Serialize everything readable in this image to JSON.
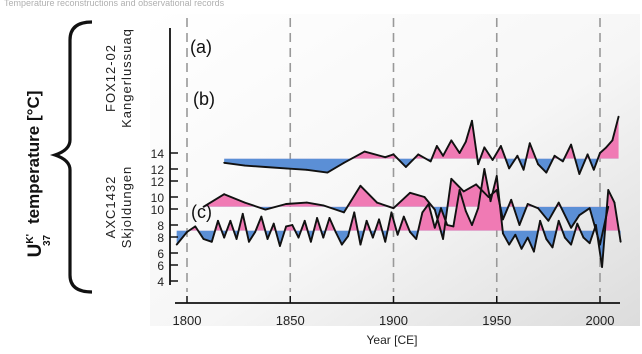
{
  "header_text": "Temperature reconstructions and observational records",
  "chart_data": {
    "type": "line",
    "ylabel_main": "temperature [°C]",
    "ylabel_symbol": "U",
    "ylabel_sup": "K'",
    "ylabel_sub": "37",
    "xlabel": "Year [CE]",
    "xlim": [
      1785,
      2015
    ],
    "xticks": [
      1800,
      1850,
      1900,
      1950,
      2000
    ],
    "dashed_gridlines_x": [
      1800,
      1850,
      1900,
      1950,
      2000
    ],
    "left_ticks": [
      4,
      6,
      8,
      10,
      12
    ],
    "right_ticks": [
      6,
      8,
      10,
      12,
      14
    ],
    "colors": {
      "above": "#f07ab4",
      "below": "#5b8fd6",
      "line": "#111111"
    },
    "series": [
      {
        "panel": "(a)",
        "site": "FOX12-02",
        "site2": "Kangerlussuaq",
        "baseline": 9.3,
        "x": [
          1808,
          1818,
          1828,
          1838,
          1848,
          1858,
          1866,
          1876,
          1884,
          1892,
          1900,
          1908,
          1915,
          1920,
          1924,
          1928,
          1934,
          1940,
          1946,
          1950,
          1953,
          1957,
          1961,
          1965,
          1970,
          1975,
          1980,
          1986,
          1990,
          1995,
          2000,
          2004
        ],
        "y": [
          9.3,
          10.2,
          9.6,
          9.1,
          9.5,
          9.6,
          9.4,
          8.9,
          10.8,
          9.6,
          9.2,
          10.3,
          10.0,
          9.1,
          7.0,
          11.3,
          10.4,
          10.9,
          10.0,
          10.5,
          8.4,
          9.8,
          8.0,
          9.5,
          9.2,
          8.3,
          9.6,
          7.8,
          8.7,
          9.2,
          6.6,
          9.3
        ]
      },
      {
        "panel": "(b)",
        "baseline": 13.6,
        "x": [
          1818,
          1828,
          1838,
          1848,
          1858,
          1868,
          1876,
          1886,
          1896,
          1900,
          1906,
          1912,
          1918,
          1921,
          1924,
          1928,
          1932,
          1935,
          1938,
          1941,
          1944,
          1948,
          1952,
          1956,
          1960,
          1963,
          1966,
          1970,
          1974,
          1978,
          1982,
          1986,
          1990,
          1994,
          1997,
          2000,
          2003,
          2006,
          2009
        ],
        "y": [
          13.3,
          13.1,
          13.0,
          12.9,
          12.8,
          12.6,
          13.3,
          14.1,
          13.7,
          13.9,
          13.0,
          13.9,
          13.4,
          14.5,
          13.8,
          14.9,
          14.0,
          14.8,
          16.3,
          13.2,
          14.4,
          13.5,
          14.5,
          12.9,
          13.8,
          12.8,
          14.7,
          13.2,
          12.6,
          13.8,
          13.4,
          14.6,
          12.5,
          13.9,
          12.8,
          14.0,
          14.4,
          14.9,
          16.6
        ]
      },
      {
        "panel": "(c)",
        "site": "AXC1432",
        "site2": "Skjoldungen",
        "baseline": 7.6,
        "x": [
          1795,
          1800,
          1804,
          1808,
          1812,
          1815,
          1818,
          1821,
          1824,
          1827,
          1830,
          1833,
          1836,
          1839,
          1842,
          1845,
          1848,
          1851,
          1854,
          1857,
          1860,
          1863,
          1866,
          1869,
          1872,
          1875,
          1878,
          1881,
          1884,
          1887,
          1890,
          1893,
          1896,
          1899,
          1902,
          1905,
          1908,
          1911,
          1914,
          1917,
          1920,
          1923,
          1926,
          1929,
          1932,
          1935,
          1938,
          1941,
          1944,
          1947,
          1950,
          1953,
          1956,
          1959,
          1962,
          1965,
          1968,
          1971,
          1974,
          1977,
          1980,
          1983,
          1986,
          1989,
          1992,
          1995,
          1998,
          2001,
          2004,
          2007,
          2010
        ],
        "y": [
          6.6,
          7.5,
          7.9,
          7.0,
          6.8,
          8.3,
          7.1,
          8.3,
          7.0,
          8.8,
          6.8,
          7.5,
          8.6,
          7.0,
          8.1,
          6.5,
          7.9,
          8.0,
          7.1,
          8.3,
          6.8,
          8.5,
          7.1,
          8.5,
          7.5,
          6.6,
          7.2,
          8.9,
          6.6,
          8.3,
          7.1,
          8.4,
          6.8,
          8.9,
          7.3,
          8.6,
          7.5,
          7.0,
          8.9,
          9.5,
          7.8,
          9.2,
          8.0,
          7.9,
          10.5,
          9.0,
          8.0,
          9.2,
          12.0,
          9.7,
          11.5,
          7.4,
          6.6,
          7.3,
          6.3,
          7.1,
          6.1,
          8.3,
          7.0,
          6.4,
          8.3,
          7.1,
          6.6,
          8.1,
          7.1,
          6.7,
          8.0,
          5.0,
          10.5,
          9.6,
          6.8
        ]
      }
    ]
  }
}
